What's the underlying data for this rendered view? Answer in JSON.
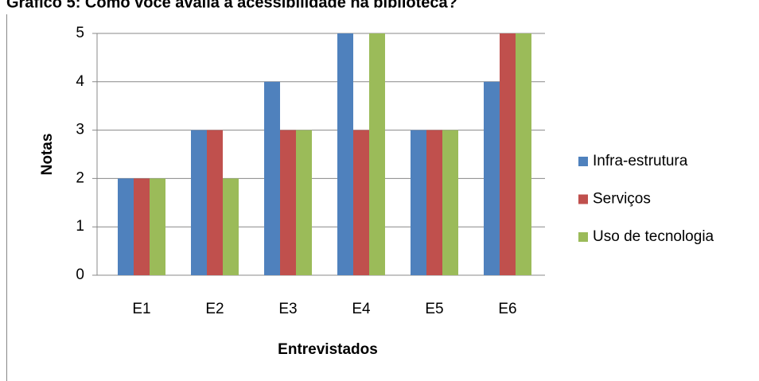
{
  "chart_data": {
    "type": "bar",
    "title": "Gráfico 5: Como você avalia a acessibilidade na biblioteca?",
    "x_label": "Entrevistados",
    "y_label": "Notas",
    "categories": [
      "E1",
      "E2",
      "E3",
      "E4",
      "E5",
      "E6"
    ],
    "series": [
      {
        "name": "Infra-estrutura",
        "color": "#4f81bd",
        "values": [
          2,
          3,
          4,
          5,
          3,
          4
        ]
      },
      {
        "name": "Serviços",
        "color": "#c0504d",
        "values": [
          2,
          3,
          3,
          3,
          3,
          5
        ]
      },
      {
        "name": "Uso de tecnologia",
        "color": "#9bbb59",
        "values": [
          2,
          2,
          3,
          5,
          3,
          5
        ]
      }
    ],
    "ylim": [
      0,
      5
    ],
    "yticks": [
      0,
      1,
      2,
      3,
      4,
      5
    ],
    "grid": true,
    "legend": "right"
  }
}
